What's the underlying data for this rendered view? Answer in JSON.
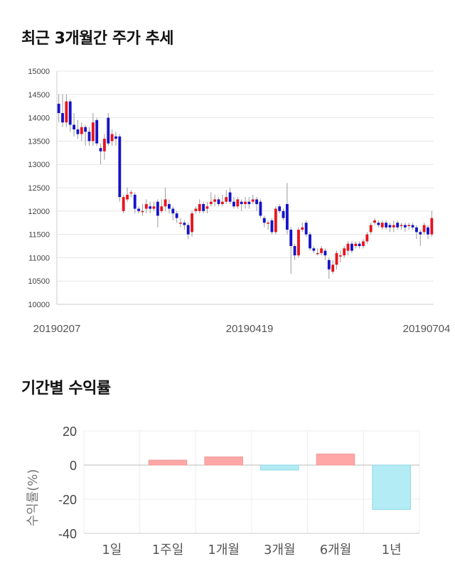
{
  "sections": {
    "price_title": "최근 3개월간 주가 추세",
    "return_title": "기간별 수익률"
  },
  "chart_data": [
    {
      "type": "candlestick",
      "title": "최근 3개월간 주가 추세",
      "ylim": [
        10000,
        15000
      ],
      "yticks": [
        10000,
        10500,
        11000,
        11500,
        12000,
        12500,
        13000,
        13500,
        14000,
        14500,
        15000
      ],
      "xtick_labels": [
        "20190207",
        "20190419",
        "20190704"
      ],
      "grid": true,
      "colors": {
        "up": "#e8141e",
        "down": "#1414c8",
        "wick": "#999999"
      },
      "candles": [
        [
          14300,
          14100,
          14500,
          13900
        ],
        [
          14100,
          13900,
          14500,
          13800
        ],
        [
          13900,
          14350,
          14500,
          13800
        ],
        [
          14350,
          13850,
          14400,
          13700
        ],
        [
          13850,
          13750,
          14100,
          13600
        ],
        [
          13750,
          13650,
          13950,
          13550
        ],
        [
          13650,
          13800,
          13900,
          13500
        ],
        [
          13800,
          13700,
          13850,
          13400
        ],
        [
          13700,
          13500,
          13800,
          13400
        ],
        [
          13500,
          13900,
          14100,
          13400
        ],
        [
          13950,
          13450,
          14000,
          13400
        ],
        [
          13350,
          13280,
          13450,
          13000
        ],
        [
          13280,
          13550,
          13650,
          13100
        ],
        [
          14000,
          13450,
          14100,
          13400
        ],
        [
          13500,
          13650,
          13750,
          13400
        ],
        [
          13600,
          13550,
          13700,
          13400
        ],
        [
          13600,
          12300,
          13650,
          12200
        ],
        [
          12000,
          12300,
          12350,
          11950
        ],
        [
          12250,
          12350,
          12500,
          12200
        ],
        [
          12380,
          12400,
          12450,
          12300
        ],
        [
          12350,
          12050,
          12400,
          11950
        ],
        [
          12050,
          12000,
          12100,
          11950
        ],
        [
          12000,
          12000,
          12150,
          11900
        ],
        [
          12050,
          12150,
          12250,
          11950
        ],
        [
          12100,
          12050,
          12200,
          11950
        ],
        [
          12050,
          12100,
          12200,
          12000
        ],
        [
          12200,
          11900,
          12250,
          11650
        ],
        [
          12000,
          12100,
          12250,
          11950
        ],
        [
          12100,
          12250,
          12500,
          12000
        ],
        [
          12150,
          12050,
          12250,
          11950
        ],
        [
          12050,
          11950,
          12100,
          11800
        ],
        [
          11950,
          11850,
          12000,
          11750
        ],
        [
          11750,
          11750,
          11850,
          11650
        ],
        [
          11750,
          11700,
          11800,
          11600
        ],
        [
          11700,
          11500,
          11750,
          11400
        ],
        [
          11550,
          11950,
          12000,
          11450
        ],
        [
          12000,
          12050,
          12100,
          11950
        ],
        [
          12000,
          12150,
          12250,
          11950
        ],
        [
          12150,
          12000,
          12200,
          11950
        ],
        [
          12050,
          12100,
          12200,
          11950
        ],
        [
          12150,
          12200,
          12400,
          12100
        ],
        [
          12200,
          12250,
          12350,
          12100
        ],
        [
          12250,
          12150,
          12300,
          12100
        ],
        [
          12150,
          12200,
          12350,
          12100
        ],
        [
          12200,
          12300,
          12450,
          12150
        ],
        [
          12400,
          12200,
          12500,
          12150
        ],
        [
          12200,
          12100,
          12300,
          12050
        ],
        [
          12100,
          12250,
          12300,
          12050
        ],
        [
          12200,
          12150,
          12250,
          12000
        ],
        [
          12150,
          12200,
          12300,
          12050
        ],
        [
          12200,
          12150,
          12300,
          12050
        ],
        [
          12200,
          12250,
          12350,
          12150
        ],
        [
          12250,
          12150,
          12300,
          12000
        ],
        [
          12200,
          11900,
          12250,
          11850
        ],
        [
          11850,
          11750,
          11900,
          11650
        ],
        [
          11750,
          11750,
          11800,
          11600
        ],
        [
          11800,
          11550,
          11850,
          11500
        ],
        [
          11550,
          12050,
          12100,
          11500
        ],
        [
          12100,
          12000,
          12150,
          11950
        ],
        [
          12000,
          11850,
          12050,
          11800
        ],
        [
          12150,
          11600,
          12600,
          11500
        ],
        [
          11600,
          11250,
          11650,
          10650
        ],
        [
          11250,
          11050,
          11300,
          10950
        ],
        [
          11050,
          11600,
          11650,
          11000
        ],
        [
          11600,
          11650,
          11750,
          11550
        ],
        [
          11750,
          11500,
          11800,
          11450
        ],
        [
          11500,
          11200,
          11550,
          11150
        ],
        [
          11200,
          11150,
          11250,
          11100
        ],
        [
          11100,
          11100,
          11200,
          11050
        ],
        [
          11100,
          11200,
          11250,
          11050
        ],
        [
          11150,
          11050,
          11200,
          10950
        ],
        [
          10950,
          10750,
          11000,
          10550
        ],
        [
          10700,
          10850,
          10950,
          10650
        ],
        [
          10850,
          11100,
          11150,
          10750
        ],
        [
          11050,
          11050,
          11150,
          10900
        ],
        [
          11050,
          11200,
          11250,
          11000
        ],
        [
          11150,
          11300,
          11350,
          11050
        ],
        [
          11300,
          11150,
          11350,
          11100
        ],
        [
          11250,
          11300,
          11350,
          11200
        ],
        [
          11300,
          11250,
          11350,
          11200
        ],
        [
          11250,
          11350,
          11400,
          11200
        ],
        [
          11350,
          11500,
          11550,
          11300
        ],
        [
          11550,
          11700,
          11750,
          11500
        ],
        [
          11750,
          11800,
          11850,
          11700
        ],
        [
          11750,
          11700,
          11800,
          11650
        ],
        [
          11650,
          11750,
          11800,
          11600
        ],
        [
          11750,
          11650,
          11800,
          11600
        ],
        [
          11700,
          11650,
          11750,
          11550
        ],
        [
          11650,
          11700,
          11800,
          11550
        ],
        [
          11750,
          11650,
          11800,
          11600
        ],
        [
          11700,
          11700,
          11750,
          11600
        ],
        [
          11700,
          11650,
          11750,
          11550
        ],
        [
          11700,
          11700,
          11750,
          11600
        ],
        [
          11700,
          11650,
          11750,
          11600
        ],
        [
          11650,
          11550,
          11700,
          11400
        ],
        [
          11550,
          11500,
          11600,
          11250
        ],
        [
          11550,
          11700,
          11750,
          11500
        ],
        [
          11650,
          11500,
          11700,
          11400
        ],
        [
          11500,
          11850,
          12000,
          11450
        ]
      ]
    },
    {
      "type": "bar",
      "title": "기간별 수익률",
      "ylabel": "수익률(%)",
      "ylim": [
        -40,
        20
      ],
      "yticks": [
        20,
        0,
        -20,
        -40
      ],
      "categories": [
        "1일",
        "1주일",
        "1개월",
        "3개월",
        "6개월",
        "1년"
      ],
      "values": [
        0.0,
        2.9,
        4.8,
        -2.9,
        6.5,
        -26.0
      ],
      "colors": {
        "positive": "#ffa6a6",
        "positive_border": "#ee9999",
        "negative": "#b3ecf5",
        "negative_border": "#8ed6e6"
      }
    }
  ]
}
